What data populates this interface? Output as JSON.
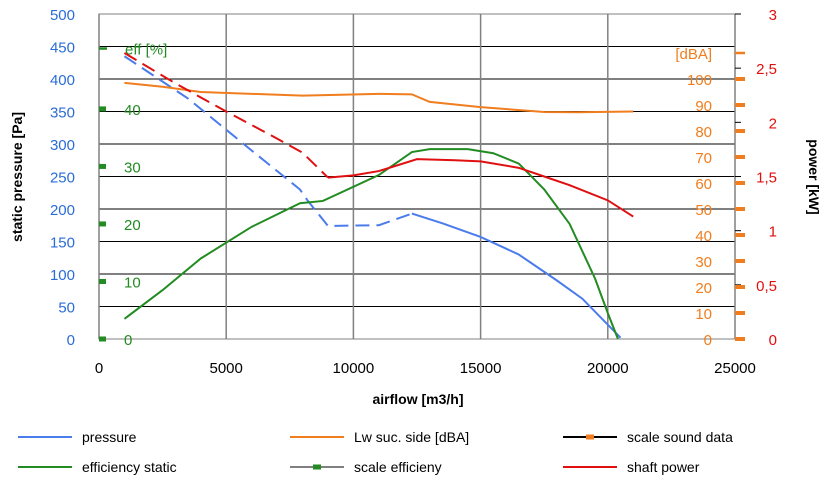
{
  "chart_data": {
    "type": "line",
    "xlabel": "airflow [m3/h]",
    "ylabel_left": "static pressure [Pa]",
    "ylabel_right": "power [kW]",
    "x_ticks": [
      "0",
      "5000",
      "10000",
      "15000",
      "20000",
      "25000"
    ],
    "xlim": [
      0,
      25000
    ],
    "y_left_ticks": [
      "0",
      "50",
      "100",
      "150",
      "200",
      "250",
      "300",
      "350",
      "400",
      "450",
      "500"
    ],
    "ylim_left": [
      0,
      500
    ],
    "y_right_ticks": [
      "0",
      "0,5",
      "1",
      "1,5",
      "2",
      "2,5",
      "3"
    ],
    "ylim_right": [
      0,
      3
    ],
    "efficiency_scale": {
      "label": "eff [%]",
      "ticks": [
        "0",
        "10",
        "20",
        "30",
        "40"
      ],
      "range": [
        0,
        56.5
      ],
      "color": "#228b22"
    },
    "sound_scale": {
      "label": "[dBA]",
      "ticks": [
        "0",
        "10",
        "20",
        "30",
        "40",
        "50",
        "60",
        "70",
        "80",
        "90",
        "100"
      ],
      "range": [
        0,
        125
      ],
      "color": "#f07d1e"
    },
    "grid": true,
    "legend_position": "bottom",
    "series": [
      {
        "name": "pressure",
        "color": "#4a7cec",
        "axis": "left",
        "points": [
          [
            1000,
            435
          ],
          [
            3500,
            370
          ],
          [
            6000,
            290
          ],
          [
            7900,
            230
          ],
          [
            8200,
            213
          ],
          [
            9000,
            174
          ],
          [
            11000,
            175
          ],
          [
            12300,
            193
          ],
          [
            13500,
            178
          ],
          [
            15000,
            157
          ],
          [
            16500,
            130
          ],
          [
            18000,
            90
          ],
          [
            19000,
            62
          ],
          [
            20500,
            2
          ]
        ],
        "dashed_until_x": 12300
      },
      {
        "name": "Lw suc. side [dBA]",
        "color": "#f07d1e",
        "axis": "sound",
        "points": [
          [
            1000,
            98.5
          ],
          [
            2500,
            97.0
          ],
          [
            4000,
            95.0
          ],
          [
            6000,
            94.3
          ],
          [
            8000,
            93.6
          ],
          [
            11000,
            94.3
          ],
          [
            12300,
            94.1
          ],
          [
            13000,
            91.2
          ],
          [
            15000,
            89.2
          ],
          [
            17500,
            87.3
          ],
          [
            18800,
            87.2
          ],
          [
            21000,
            87.5
          ]
        ]
      },
      {
        "name": "scale sound data",
        "color": "#f07d1e",
        "axis": "sound",
        "scale_marker": true
      },
      {
        "name": "efficiency static",
        "color": "#228b22",
        "axis": "eff",
        "points": [
          [
            1000,
            3.5
          ],
          [
            2500,
            8.5
          ],
          [
            4000,
            14.0
          ],
          [
            6000,
            19.5
          ],
          [
            7900,
            23.6
          ],
          [
            8800,
            24.0
          ],
          [
            11000,
            28.5
          ],
          [
            12300,
            32.5
          ],
          [
            13000,
            33.0
          ],
          [
            14500,
            33.0
          ],
          [
            15500,
            32.3
          ],
          [
            16500,
            30.5
          ],
          [
            17500,
            26.0
          ],
          [
            18500,
            20.0
          ],
          [
            19500,
            10.5
          ],
          [
            20000,
            4.5
          ],
          [
            20400,
            0
          ]
        ]
      },
      {
        "name": "scale efficieny",
        "color": "#228b22",
        "axis": "eff",
        "scale_marker": true
      },
      {
        "name": "shaft power",
        "color": "#e01010",
        "axis": "right",
        "points": [
          [
            1000,
            2.64
          ],
          [
            3000,
            2.36
          ],
          [
            5000,
            2.1
          ],
          [
            7000,
            1.85
          ],
          [
            8000,
            1.72
          ],
          [
            9000,
            1.49
          ],
          [
            10000,
            1.51
          ],
          [
            11000,
            1.55
          ],
          [
            12500,
            1.66
          ],
          [
            14000,
            1.65
          ],
          [
            15000,
            1.64
          ],
          [
            16500,
            1.58
          ],
          [
            17500,
            1.5
          ],
          [
            18500,
            1.42
          ],
          [
            20000,
            1.28
          ],
          [
            21000,
            1.13
          ]
        ],
        "dashed_until_x": 9000
      }
    ]
  },
  "legend": {
    "items": [
      {
        "label": "pressure",
        "color": "#4a7cec",
        "marker": false
      },
      {
        "label": "Lw suc. side [dBA]",
        "color": "#f07d1e",
        "marker": false
      },
      {
        "label": "scale sound data",
        "color": "#000000",
        "marker": true,
        "marker_color": "#f07d1e"
      },
      {
        "label": "efficiency static",
        "color": "#228b22",
        "marker": false
      },
      {
        "label": "scale efficieny",
        "color": "#808080",
        "marker": true,
        "marker_color": "#228b22"
      },
      {
        "label": "shaft power",
        "color": "#e01010",
        "marker": false
      }
    ]
  },
  "colors": {
    "left_axis": "#2b6cd6",
    "right_axis": "#e01010",
    "grid": "#808080"
  }
}
